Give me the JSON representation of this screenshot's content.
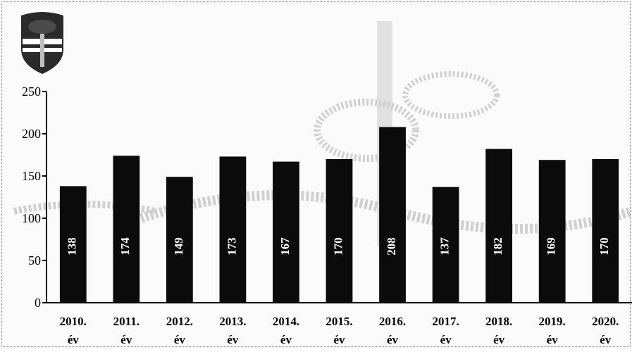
{
  "chart_data": {
    "type": "bar",
    "categories": [
      {
        "year": "2010.",
        "unit": "év"
      },
      {
        "year": "2011.",
        "unit": "év"
      },
      {
        "year": "2012.",
        "unit": "év"
      },
      {
        "year": "2013.",
        "unit": "év"
      },
      {
        "year": "2014.",
        "unit": "év"
      },
      {
        "year": "2015.",
        "unit": "év"
      },
      {
        "year": "2016.",
        "unit": "év"
      },
      {
        "year": "2017.",
        "unit": "év"
      },
      {
        "year": "2018.",
        "unit": "év"
      },
      {
        "year": "2019.",
        "unit": "év"
      },
      {
        "year": "2020.",
        "unit": "év"
      }
    ],
    "values": [
      138,
      174,
      149,
      173,
      167,
      170,
      208,
      137,
      182,
      169,
      170
    ],
    "data_labels": [
      "138",
      "174",
      "149",
      "173",
      "167",
      "170",
      "208",
      "137",
      "182",
      "169",
      "170"
    ],
    "yticks": [
      "0",
      "50",
      "100",
      "150",
      "200",
      "250"
    ],
    "ylim": [
      0,
      250
    ],
    "grid": false,
    "legend": "none",
    "bar_color": "#0b0b0b",
    "label_color": "#ffffff",
    "watermark_color": "#9a9a9a"
  }
}
